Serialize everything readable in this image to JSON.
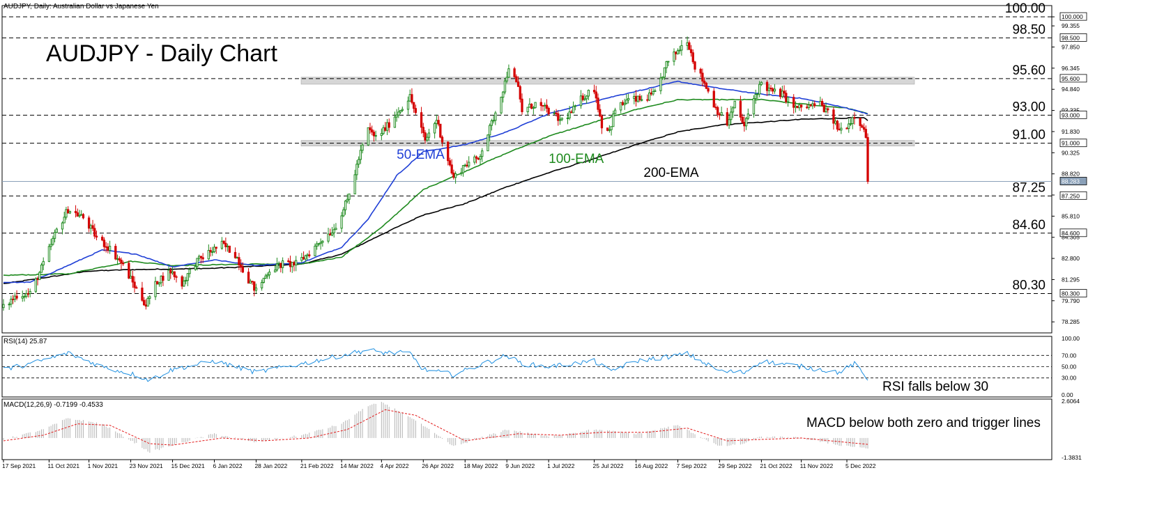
{
  "window": {
    "header": "AUDJPY, Daily:  Australian Dollar vs Japanese Yen"
  },
  "title": "AUDJPY - Daily Chart",
  "colors": {
    "bull_candle": "#1e8a1e",
    "bear_candle": "#d40000",
    "ema50": "#1f3fd6",
    "ema100": "#1e8a1e",
    "ema200": "#000000",
    "rsi": "#1e8fe0",
    "macd_hist": "#b4b4b4",
    "macd_signal": "#e21b1b",
    "zone_fill": "#d6d6d6",
    "axis": "#000000"
  },
  "main_axis": {
    "tick_labels": [
      "100.000",
      "99.355",
      "97.850",
      "96.345",
      "94.840",
      "93.335",
      "91.830",
      "90.325",
      "88.820",
      "87.315",
      "85.810",
      "84.305",
      "82.800",
      "81.295",
      "79.790",
      "78.285"
    ],
    "tick_values": [
      100.0,
      99.355,
      97.85,
      96.345,
      94.84,
      93.335,
      91.83,
      90.325,
      88.82,
      87.315,
      85.81,
      84.305,
      82.8,
      81.295,
      79.79,
      78.285
    ],
    "boxed_labels": [
      {
        "text": "100.000",
        "value": 100.0,
        "style": "white"
      },
      {
        "text": "98.500",
        "value": 98.5,
        "style": "white"
      },
      {
        "text": "95.600",
        "value": 95.6,
        "style": "white"
      },
      {
        "text": "93.000",
        "value": 93.0,
        "style": "white"
      },
      {
        "text": "91.000",
        "value": 91.0,
        "style": "white"
      },
      {
        "text": "88.283",
        "value": 88.283,
        "style": "gray"
      },
      {
        "text": "87.250",
        "value": 87.25,
        "style": "white"
      },
      {
        "text": "84.600",
        "value": 84.6,
        "style": "white"
      },
      {
        "text": "80.300",
        "value": 80.3,
        "style": "white"
      }
    ],
    "last_price": 88.283
  },
  "levels": [
    {
      "value": 100.0,
      "label": "100.00"
    },
    {
      "value": 98.5,
      "label": "98.50"
    },
    {
      "value": 95.6,
      "label": "95.60"
    },
    {
      "value": 93.0,
      "label": "93.00"
    },
    {
      "value": 91.0,
      "label": "91.00"
    },
    {
      "value": 87.25,
      "label": "87.25"
    },
    {
      "value": 84.6,
      "label": "84.60"
    },
    {
      "value": 80.3,
      "label": "80.30"
    }
  ],
  "zones": [
    {
      "from": 95.2,
      "to": 95.7
    },
    {
      "from": 90.8,
      "to": 91.2
    }
  ],
  "ema_labels": [
    {
      "text": "50-EMA",
      "x_date": "2022-04-12",
      "y": 89.9,
      "color": "#1f3fd6"
    },
    {
      "text": "100-EMA",
      "x_date": "2022-07-01",
      "y": 89.6,
      "color": "#1e8a1e"
    },
    {
      "text": "200-EMA",
      "x_date": "2022-08-20",
      "y": 88.6,
      "color": "#000000"
    }
  ],
  "date_labels": [
    "17 Sep 2021",
    "11 Oct 2021",
    "1 Nov 2021",
    "23 Nov 2021",
    "15 Dec 2021",
    "6 Jan 2022",
    "28 Jan 2022",
    "21 Feb 2022",
    "14 Mar 2022",
    "4 Apr 2022",
    "26 Apr 2022",
    "18 May 2022",
    "9 Jun 2022",
    "1 Jul 2022",
    "25 Jul 2022",
    "16 Aug 2022",
    "7 Sep 2022",
    "29 Sep 2022",
    "21 Oct 2022",
    "11 Nov 2022",
    "5 Dec 2022"
  ],
  "rsi_panel": {
    "header": "RSI(14) 25.87",
    "tick_labels": [
      "100.00",
      "70.00",
      "50.00",
      "30.00",
      "0.00"
    ],
    "tick_values": [
      100,
      70,
      50,
      30,
      0
    ],
    "annotation": "RSI falls below 30"
  },
  "macd_panel": {
    "header": "MACD(12,26,9) -0.7199 -0.4533",
    "tick_labels": [
      "2.6064",
      "-1.3831"
    ],
    "tick_values": [
      2.6064,
      -1.3831
    ],
    "annotation": "MACD below both zero and trigger lines"
  },
  "chart_data": {
    "type": "candlestick",
    "start_date": "2021-09-17",
    "end_date": "2022-12-16",
    "ylim": [
      77.5,
      100.8
    ],
    "price_anchors": [
      [
        "2021-09-17",
        79.3
      ],
      [
        "2021-09-24",
        80.2
      ],
      [
        "2021-10-01",
        80.3
      ],
      [
        "2021-10-08",
        82.4
      ],
      [
        "2021-10-15",
        84.8
      ],
      [
        "2021-10-21",
        86.3
      ],
      [
        "2021-10-29",
        85.7
      ],
      [
        "2021-11-05",
        84.3
      ],
      [
        "2021-11-12",
        83.5
      ],
      [
        "2021-11-19",
        82.3
      ],
      [
        "2021-11-26",
        80.6
      ],
      [
        "2021-12-01",
        79.5
      ],
      [
        "2021-12-07",
        81.2
      ],
      [
        "2021-12-14",
        81.9
      ],
      [
        "2021-12-20",
        81.0
      ],
      [
        "2021-12-27",
        82.5
      ],
      [
        "2022-01-04",
        83.3
      ],
      [
        "2022-01-10",
        83.8
      ],
      [
        "2022-01-17",
        83.1
      ],
      [
        "2022-01-24",
        81.3
      ],
      [
        "2022-01-28",
        80.5
      ],
      [
        "2022-02-04",
        82.0
      ],
      [
        "2022-02-11",
        82.4
      ],
      [
        "2022-02-18",
        82.4
      ],
      [
        "2022-02-25",
        83.2
      ],
      [
        "2022-03-04",
        84.2
      ],
      [
        "2022-03-10",
        84.9
      ],
      [
        "2022-03-17",
        86.9
      ],
      [
        "2022-03-23",
        89.9
      ],
      [
        "2022-03-28",
        92.0
      ],
      [
        "2022-04-01",
        91.4
      ],
      [
        "2022-04-07",
        92.2
      ],
      [
        "2022-04-13",
        93.3
      ],
      [
        "2022-04-19",
        94.3
      ],
      [
        "2022-04-22",
        93.1
      ],
      [
        "2022-04-27",
        91.2
      ],
      [
        "2022-05-03",
        92.7
      ],
      [
        "2022-05-06",
        91.2
      ],
      [
        "2022-05-12",
        88.5
      ],
      [
        "2022-05-18",
        89.5
      ],
      [
        "2022-05-25",
        89.9
      ],
      [
        "2022-06-01",
        92.4
      ],
      [
        "2022-06-08",
        95.3
      ],
      [
        "2022-06-10",
        96.5
      ],
      [
        "2022-06-15",
        94.9
      ],
      [
        "2022-06-17",
        93.3
      ],
      [
        "2022-06-24",
        93.8
      ],
      [
        "2022-07-01",
        93.3
      ],
      [
        "2022-07-07",
        92.6
      ],
      [
        "2022-07-13",
        93.2
      ],
      [
        "2022-07-19",
        94.3
      ],
      [
        "2022-07-25",
        94.9
      ],
      [
        "2022-07-29",
        92.3
      ],
      [
        "2022-08-02",
        91.9
      ],
      [
        "2022-08-05",
        93.4
      ],
      [
        "2022-08-12",
        94.1
      ],
      [
        "2022-08-19",
        94.1
      ],
      [
        "2022-08-26",
        94.5
      ],
      [
        "2022-09-01",
        96.6
      ],
      [
        "2022-09-07",
        97.6
      ],
      [
        "2022-09-12",
        98.4
      ],
      [
        "2022-09-16",
        96.5
      ],
      [
        "2022-09-21",
        95.3
      ],
      [
        "2022-09-27",
        93.5
      ],
      [
        "2022-10-03",
        92.4
      ],
      [
        "2022-10-07",
        93.8
      ],
      [
        "2022-10-12",
        92.2
      ],
      [
        "2022-10-17",
        94.2
      ],
      [
        "2022-10-21",
        95.3
      ],
      [
        "2022-10-26",
        94.7
      ],
      [
        "2022-11-01",
        94.5
      ],
      [
        "2022-11-08",
        93.5
      ],
      [
        "2022-11-14",
        93.6
      ],
      [
        "2022-11-21",
        93.8
      ],
      [
        "2022-11-28",
        92.6
      ],
      [
        "2022-12-01",
        91.9
      ],
      [
        "2022-12-06",
        92.4
      ],
      [
        "2022-12-09",
        93.0
      ],
      [
        "2022-12-13",
        92.3
      ],
      [
        "2022-12-15",
        91.5
      ],
      [
        "2022-12-16",
        88.283
      ]
    ],
    "ema50_anchors": [
      [
        "2021-09-17",
        81.1
      ],
      [
        "2021-10-01",
        81.1
      ],
      [
        "2021-10-21",
        82.3
      ],
      [
        "2021-11-08",
        83.4
      ],
      [
        "2021-11-26",
        83.1
      ],
      [
        "2021-12-15",
        82.2
      ],
      [
        "2022-01-06",
        82.7
      ],
      [
        "2022-01-28",
        82.3
      ],
      [
        "2022-02-21",
        82.5
      ],
      [
        "2022-03-14",
        83.6
      ],
      [
        "2022-03-28",
        85.6
      ],
      [
        "2022-04-12",
        88.7
      ],
      [
        "2022-04-26",
        90.4
      ],
      [
        "2022-05-18",
        90.9
      ],
      [
        "2022-06-09",
        91.8
      ],
      [
        "2022-07-01",
        93.1
      ],
      [
        "2022-07-25",
        94.0
      ],
      [
        "2022-08-16",
        94.7
      ],
      [
        "2022-09-07",
        95.4
      ],
      [
        "2022-09-29",
        94.9
      ],
      [
        "2022-10-21",
        94.5
      ],
      [
        "2022-11-11",
        94.2
      ],
      [
        "2022-12-05",
        93.5
      ],
      [
        "2022-12-16",
        93.1
      ]
    ],
    "ema100_anchors": [
      [
        "2021-09-17",
        81.6
      ],
      [
        "2021-10-21",
        81.7
      ],
      [
        "2021-11-23",
        82.6
      ],
      [
        "2021-12-15",
        82.3
      ],
      [
        "2022-01-28",
        82.4
      ],
      [
        "2022-02-21",
        82.4
      ],
      [
        "2022-03-14",
        82.9
      ],
      [
        "2022-04-04",
        85.0
      ],
      [
        "2022-04-26",
        87.7
      ],
      [
        "2022-05-18",
        89.0
      ],
      [
        "2022-06-09",
        90.3
      ],
      [
        "2022-07-01",
        91.5
      ],
      [
        "2022-07-25",
        92.5
      ],
      [
        "2022-08-16",
        93.4
      ],
      [
        "2022-09-07",
        94.1
      ],
      [
        "2022-09-29",
        94.1
      ],
      [
        "2022-10-21",
        94.1
      ],
      [
        "2022-11-11",
        93.8
      ],
      [
        "2022-12-05",
        93.5
      ],
      [
        "2022-12-16",
        93.1
      ]
    ],
    "ema200_anchors": [
      [
        "2021-09-17",
        81.0
      ],
      [
        "2021-11-01",
        81.9
      ],
      [
        "2021-11-23",
        82.0
      ],
      [
        "2022-01-06",
        82.1
      ],
      [
        "2022-02-21",
        82.4
      ],
      [
        "2022-03-14",
        83.1
      ],
      [
        "2022-04-04",
        84.5
      ],
      [
        "2022-04-26",
        85.9
      ],
      [
        "2022-05-18",
        86.7
      ],
      [
        "2022-06-09",
        87.9
      ],
      [
        "2022-07-01",
        88.9
      ],
      [
        "2022-07-25",
        89.9
      ],
      [
        "2022-08-16",
        90.9
      ],
      [
        "2022-09-07",
        91.8
      ],
      [
        "2022-09-29",
        92.3
      ],
      [
        "2022-10-21",
        92.5
      ],
      [
        "2022-11-11",
        92.7
      ],
      [
        "2022-12-05",
        92.8
      ],
      [
        "2022-12-14",
        92.8
      ],
      [
        "2022-12-16",
        92.6
      ]
    ],
    "rsi_anchors": [
      [
        "2021-09-17",
        45
      ],
      [
        "2021-10-01",
        55
      ],
      [
        "2021-10-21",
        74
      ],
      [
        "2021-11-08",
        50
      ],
      [
        "2021-11-26",
        35
      ],
      [
        "2021-12-03",
        26
      ],
      [
        "2021-12-15",
        45
      ],
      [
        "2022-01-06",
        60
      ],
      [
        "2022-01-28",
        40
      ],
      [
        "2022-02-21",
        55
      ],
      [
        "2022-03-14",
        70
      ],
      [
        "2022-03-28",
        80
      ],
      [
        "2022-04-04",
        75
      ],
      [
        "2022-04-19",
        74
      ],
      [
        "2022-04-26",
        45
      ],
      [
        "2022-05-12",
        36
      ],
      [
        "2022-06-09",
        70
      ],
      [
        "2022-06-17",
        55
      ],
      [
        "2022-07-01",
        50
      ],
      [
        "2022-07-25",
        60
      ],
      [
        "2022-08-02",
        42
      ],
      [
        "2022-08-16",
        60
      ],
      [
        "2022-09-07",
        70
      ],
      [
        "2022-09-12",
        73
      ],
      [
        "2022-09-29",
        42
      ],
      [
        "2022-10-12",
        40
      ],
      [
        "2022-10-21",
        60
      ],
      [
        "2022-11-11",
        50
      ],
      [
        "2022-12-01",
        40
      ],
      [
        "2022-12-09",
        55
      ],
      [
        "2022-12-16",
        25.87
      ]
    ],
    "macd_anchors": [
      [
        "2021-09-17",
        -0.1
      ],
      [
        "2021-10-08",
        0.6
      ],
      [
        "2021-10-21",
        1.4
      ],
      [
        "2021-11-08",
        1.0
      ],
      [
        "2021-11-26",
        -0.4
      ],
      [
        "2021-12-03",
        -1.0
      ],
      [
        "2021-12-15",
        -0.5
      ],
      [
        "2022-01-06",
        0.3
      ],
      [
        "2022-01-28",
        -0.3
      ],
      [
        "2022-02-21",
        0.2
      ],
      [
        "2022-03-14",
        1.0
      ],
      [
        "2022-03-28",
        2.3
      ],
      [
        "2022-04-04",
        2.5
      ],
      [
        "2022-04-19",
        1.5
      ],
      [
        "2022-05-12",
        -0.6
      ],
      [
        "2022-06-09",
        0.6
      ],
      [
        "2022-07-01",
        0.1
      ],
      [
        "2022-07-25",
        0.6
      ],
      [
        "2022-08-16",
        0.3
      ],
      [
        "2022-09-07",
        0.9
      ],
      [
        "2022-09-29",
        -0.6
      ],
      [
        "2022-10-12",
        -0.4
      ],
      [
        "2022-10-21",
        0.1
      ],
      [
        "2022-11-11",
        0.0
      ],
      [
        "2022-12-01",
        -0.5
      ],
      [
        "2022-12-16",
        -0.72
      ]
    ],
    "macd_signal_anchors": [
      [
        "2021-09-17",
        -0.2
      ],
      [
        "2021-10-08",
        0.2
      ],
      [
        "2021-10-26",
        1.0
      ],
      [
        "2021-11-12",
        0.9
      ],
      [
        "2021-12-03",
        -0.4
      ],
      [
        "2021-12-15",
        -0.5
      ],
      [
        "2022-01-10",
        0.0
      ],
      [
        "2022-02-01",
        -0.2
      ],
      [
        "2022-02-25",
        0.0
      ],
      [
        "2022-03-17",
        0.6
      ],
      [
        "2022-04-06",
        2.0
      ],
      [
        "2022-04-22",
        1.6
      ],
      [
        "2022-05-18",
        -0.2
      ],
      [
        "2022-06-15",
        0.3
      ],
      [
        "2022-07-07",
        0.2
      ],
      [
        "2022-07-29",
        0.4
      ],
      [
        "2022-08-22",
        0.4
      ],
      [
        "2022-09-12",
        0.7
      ],
      [
        "2022-10-03",
        -0.2
      ],
      [
        "2022-10-21",
        -0.1
      ],
      [
        "2022-11-11",
        0.0
      ],
      [
        "2022-12-16",
        -0.45
      ]
    ]
  }
}
